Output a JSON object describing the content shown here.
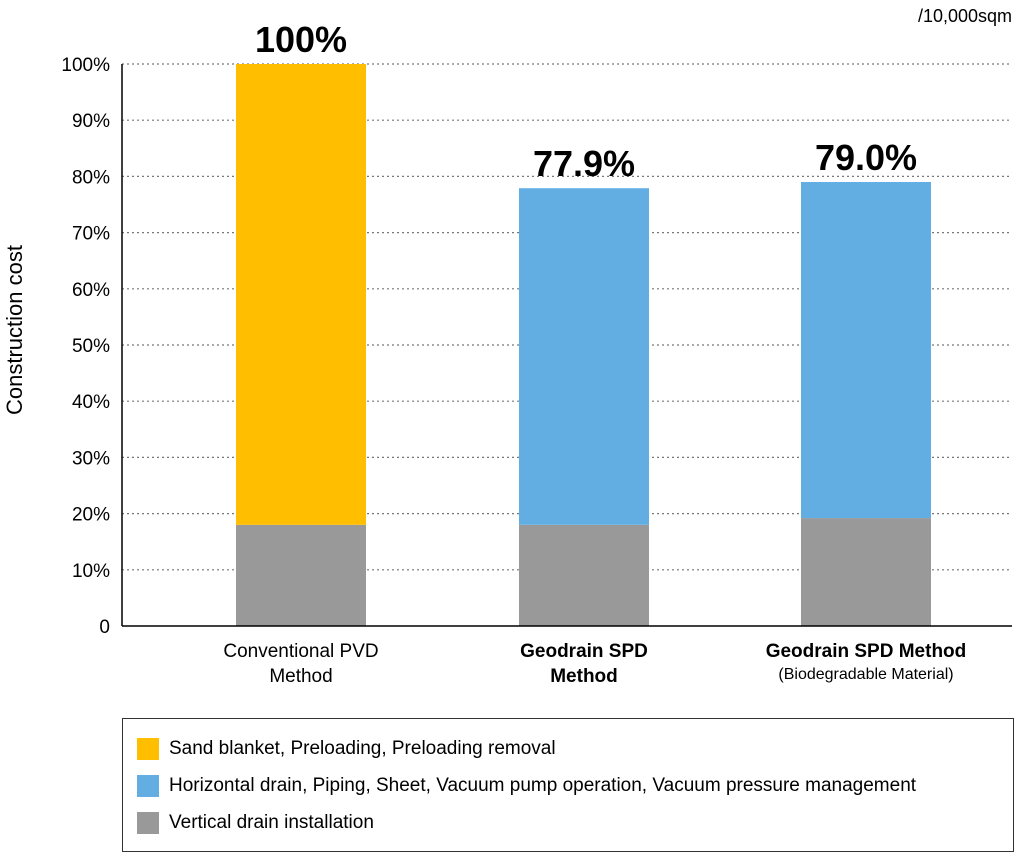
{
  "chart_data": {
    "type": "bar",
    "stacked": true,
    "unit_note": "/10,000sqm",
    "ylabel": "Construction cost",
    "ylim": [
      0,
      100
    ],
    "yticks": [
      "0",
      "10%",
      "20%",
      "30%",
      "40%",
      "50%",
      "60%",
      "70%",
      "80%",
      "90%",
      "100%"
    ],
    "grid": true,
    "categories": [
      {
        "line1": "Conventional PVD",
        "line2": "Method",
        "bold": false
      },
      {
        "line1": "Geodrain SPD",
        "line2": "Method",
        "bold": true
      },
      {
        "line1": "Geodrain SPD Method",
        "line2": "(Biodegradable Material)",
        "bold": true
      }
    ],
    "totals_labels": [
      "100%",
      "77.9%",
      "79.0%"
    ],
    "series": [
      {
        "name": "Vertical drain installation",
        "color": "#999999",
        "values": [
          18,
          18,
          19.2
        ]
      },
      {
        "name": "Sand blanket, Preloading, Preloading removal",
        "color": "#FFBE00",
        "values": [
          82,
          0,
          0
        ]
      },
      {
        "name": "Horizontal drain, Piping, Sheet, Vacuum pump operation, Vacuum pressure management",
        "color": "#62AEE3",
        "values": [
          0,
          59.9,
          59.8
        ]
      }
    ],
    "legend": {
      "position": "bottom",
      "items": [
        {
          "label": "Sand blanket, Preloading, Preloading removal",
          "color": "#FFBE00"
        },
        {
          "label": "Horizontal drain, Piping, Sheet, Vacuum pump operation, Vacuum pressure management",
          "color": "#62AEE3"
        },
        {
          "label": "Vertical drain installation",
          "color": "#999999"
        }
      ]
    }
  }
}
